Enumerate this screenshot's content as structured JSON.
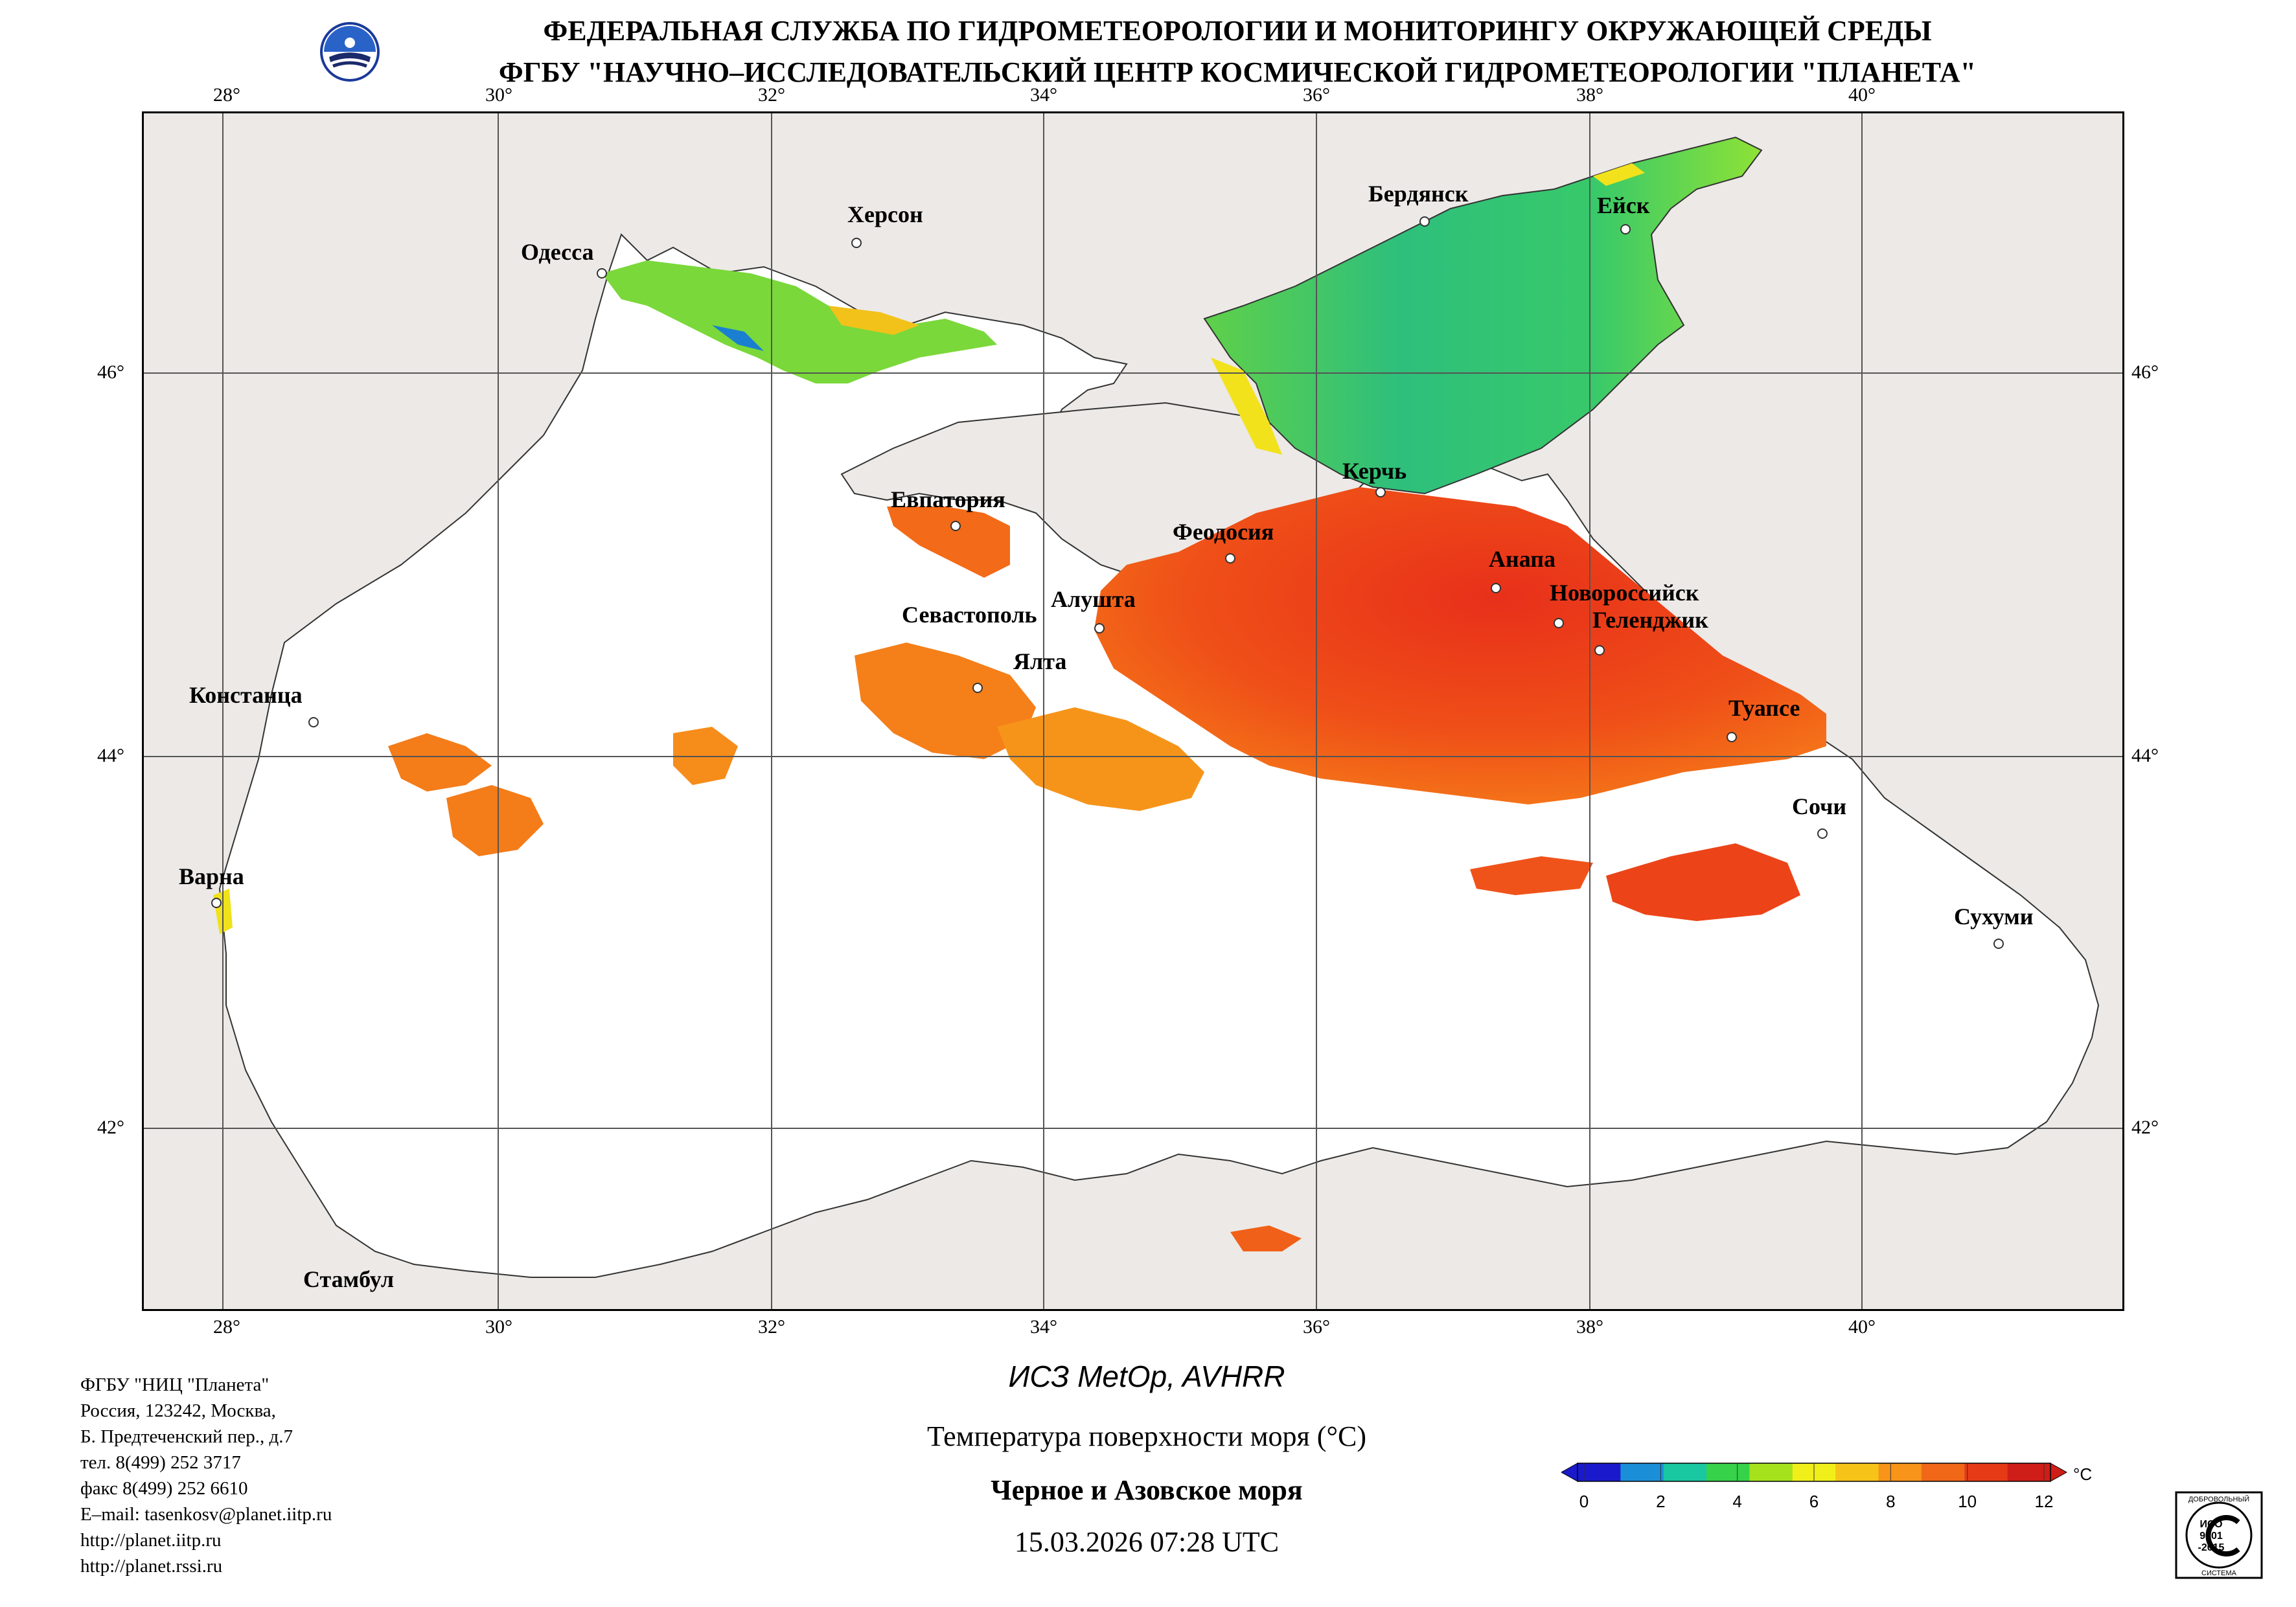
{
  "header": {
    "line1": "ФЕДЕРАЛЬНАЯ СЛУЖБА ПО ГИДРОМЕТЕОРОЛОГИИ И МОНИТОРИНГУ ОКРУЖАЮЩЕЙ СРЕДЫ",
    "line2": "ФГБУ \"НАУЧНО–ИССЛЕДОВАТЕЛЬСКИЙ ЦЕНТР КОСМИЧЕСКОЙ ГИДРОМЕТЕОРОЛОГИИ \"ПЛАНЕТА\""
  },
  "map": {
    "lon_labels": [
      "28°",
      "30°",
      "32°",
      "34°",
      "36°",
      "38°",
      "40°"
    ],
    "lat_labels": [
      "46°",
      "44°",
      "42°"
    ],
    "cities": {
      "odessa": "Одесса",
      "kherson": "Херсон",
      "berdyansk": "Бердянск",
      "yeysk": "Ейск",
      "kerch": "Керчь",
      "evpatoria": "Евпатория",
      "feodosia": "Феодосия",
      "anapa": "Анапа",
      "sevastopol": "Севастополь",
      "alushta": "Алушта",
      "novorossiysk": "Новороссийск",
      "gelendzhik": "Геленджик",
      "yalta": "Ялта",
      "constanta": "Констанца",
      "tuapse": "Туапсе",
      "sochi": "Сочи",
      "varna": "Варна",
      "sukhumi": "Сухуми",
      "istanbul": "Стамбул"
    },
    "colors": {
      "land": "#ece9e6",
      "sea_nodata": "#ffffff",
      "frame": "#000000",
      "grid": "#555555"
    }
  },
  "info": {
    "org": "ФГБУ \"НИЦ \"Планета\"",
    "addr1": "Россия, 123242, Москва,",
    "addr2": "Б. Предтеченский пер., д.7",
    "phone": "тел. 8(499) 252 3717",
    "fax": "факс 8(499) 252 6610",
    "email": "E–mail: tasenkosv@planet.iitp.ru",
    "url1": "http://planet.iitp.ru",
    "url2": "http://planet.rssi.ru"
  },
  "caption": {
    "satellite": "ИСЗ MetOp, AVHRR",
    "parameter": "Температура поверхности моря (°С)",
    "region": "Черное и Азовское моря",
    "datetime": "15.03.2026 07:28 UTC"
  },
  "colorbar": {
    "unit": "°C",
    "ticks": [
      "0",
      "2",
      "4",
      "6",
      "8",
      "10",
      "12"
    ],
    "colors": [
      "#1a1acc",
      "#1a8fd8",
      "#19c7a0",
      "#35d24a",
      "#a6e21c",
      "#f0ef1a",
      "#f6c318",
      "#f79419",
      "#f06718",
      "#e63a17",
      "#cf1d18"
    ]
  },
  "badge": {
    "top": "ДОБРОВОЛЬНЫЙ",
    "iso": "ИСО",
    "num": "9001",
    "year": "-2015",
    "bottom": "СИСТЕМА"
  }
}
